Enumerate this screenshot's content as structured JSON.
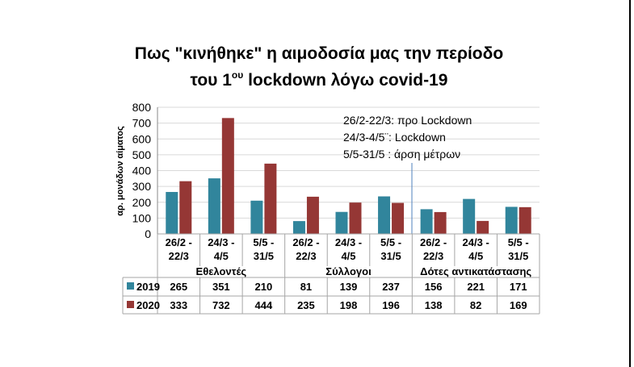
{
  "title": {
    "line1": "Πως \"κινήθηκε\" η αιμοδοσία  μας την περίοδο",
    "line2_prefix": "του 1",
    "line2_sup": "ου",
    "line2_suffix": "  lockdown λόγω covid-19"
  },
  "chart_data": {
    "type": "bar",
    "ylabel": "αρ. μονάδων αίματος",
    "ylim": [
      0,
      800
    ],
    "yticks": [
      0,
      100,
      200,
      300,
      400,
      500,
      600,
      700,
      800
    ],
    "grid": true,
    "groups": [
      {
        "label": "Εθελοντές",
        "categories": [
          [
            "26/2 -",
            "22/3"
          ],
          [
            "24/3 -",
            "4/5"
          ],
          [
            "5/5 -",
            "31/5"
          ]
        ]
      },
      {
        "label": "Σύλλογοι",
        "categories": [
          [
            "26/2 -",
            "22/3"
          ],
          [
            "24/3 -",
            "4/5"
          ],
          [
            "5/5 -",
            "31/5"
          ]
        ]
      },
      {
        "label": "Δότες αντικατάστασης",
        "categories": [
          [
            "26/2 -",
            "22/3"
          ],
          [
            "24/3 -",
            "4/5"
          ],
          [
            "5/5 -",
            "31/5"
          ]
        ]
      }
    ],
    "series": [
      {
        "name": "2019",
        "color": "#31859c",
        "values": [
          265,
          351,
          210,
          81,
          139,
          237,
          156,
          221,
          171
        ]
      },
      {
        "name": "2020",
        "color": "#953735",
        "values": [
          333,
          732,
          444,
          235,
          198,
          196,
          138,
          82,
          169
        ]
      }
    ],
    "annotations": [
      "26/2-22/3: προ Lockdown",
      "24/3-4/5¨: Lockdown",
      "5/5-31/5 : άρση μέτρων"
    ]
  }
}
